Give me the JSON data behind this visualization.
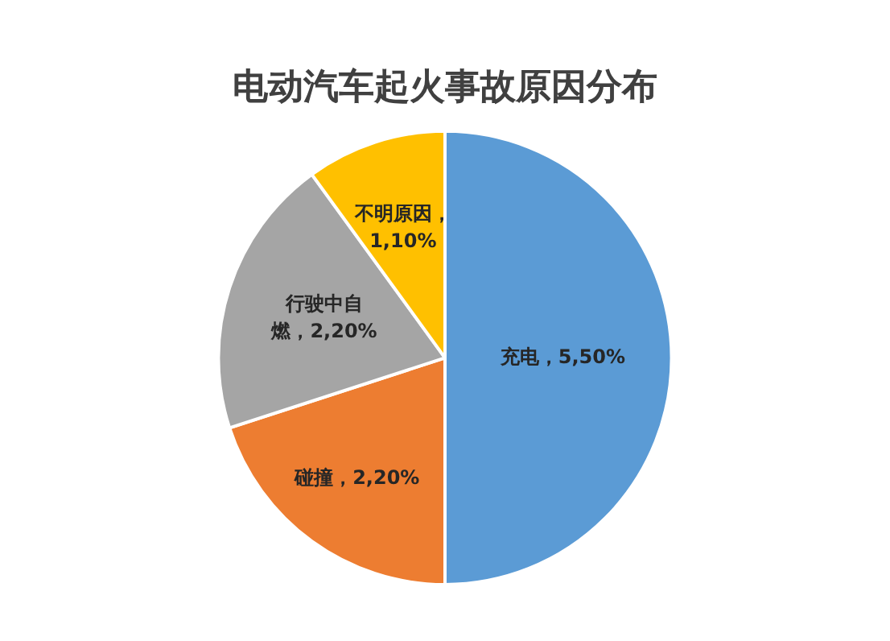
{
  "chart_data": {
    "type": "pie",
    "title": "电动汽车起火事故原因分布",
    "categories": [
      "充电，5,50%",
      "碰撞，2,20%",
      "行驶中自燃，2,20%",
      "不明原因，1,10%"
    ],
    "values": [
      50,
      20,
      20,
      10
    ],
    "colors": [
      "#5b9bd5",
      "#ed7d31",
      "#a5a5a5",
      "#ffc000"
    ],
    "legend": false
  }
}
